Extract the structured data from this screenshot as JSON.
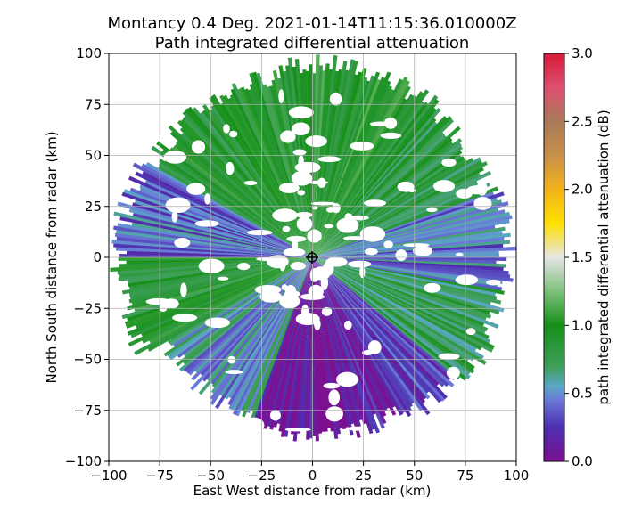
{
  "chart_data": {
    "type": "heatmap",
    "plot_kind": "radar PPI",
    "title_line1": "Montancy 0.4 Deg. 2021-01-14T11:15:36.010000Z",
    "title_line2": "Path integrated differential attenuation",
    "xlabel": "East West distance from radar (km)",
    "ylabel": "North South distance from radar (km)",
    "xlim": [
      -100,
      100
    ],
    "ylim": [
      -100,
      100
    ],
    "xticks": [
      -100,
      -75,
      -50,
      -25,
      0,
      25,
      50,
      75,
      100
    ],
    "yticks": [
      -100,
      -75,
      -50,
      -25,
      0,
      25,
      50,
      75,
      100
    ],
    "xtick_labels": [
      "−100",
      "−75",
      "−50",
      "−25",
      "0",
      "25",
      "50",
      "75",
      "100"
    ],
    "ytick_labels": [
      "−100",
      "−75",
      "−50",
      "−25",
      "0",
      "25",
      "50",
      "75",
      "100"
    ],
    "grid": true,
    "max_range_km": 100,
    "radar_position_km": [
      0,
      0
    ],
    "colorbar": {
      "label": "path integrated differential attenuation (dB)",
      "range": [
        0.0,
        3.0
      ],
      "ticks": [
        0.0,
        0.5,
        1.0,
        1.5,
        2.0,
        2.5,
        3.0
      ],
      "tick_labels": [
        "0.0",
        "0.5",
        "1.0",
        "1.5",
        "2.0",
        "2.5",
        "3.0"
      ],
      "stops": [
        {
          "v": 0.0,
          "color": "#7b1090"
        },
        {
          "v": 0.25,
          "color": "#4e2fb0"
        },
        {
          "v": 0.45,
          "color": "#6a78d8"
        },
        {
          "v": 0.55,
          "color": "#5aa6c6"
        },
        {
          "v": 0.7,
          "color": "#3f9f5a"
        },
        {
          "v": 1.0,
          "color": "#159018"
        },
        {
          "v": 1.25,
          "color": "#7dc07a"
        },
        {
          "v": 1.5,
          "color": "#e6e6e6"
        },
        {
          "v": 1.75,
          "color": "#ffe100"
        },
        {
          "v": 2.0,
          "color": "#f2b21a"
        },
        {
          "v": 2.25,
          "color": "#c9904a"
        },
        {
          "v": 2.5,
          "color": "#a87a5a"
        },
        {
          "v": 2.75,
          "color": "#e05070"
        },
        {
          "v": 3.0,
          "color": "#d81a3a"
        }
      ]
    },
    "sectors": [
      {
        "from_deg": -10,
        "to_deg": 40,
        "value": 0.95,
        "rmax": 100
      },
      {
        "from_deg": 40,
        "to_deg": 70,
        "value": 0.85,
        "rmax": 98
      },
      {
        "from_deg": 70,
        "to_deg": 100,
        "value": 0.45,
        "rmax": 100
      },
      {
        "from_deg": 100,
        "to_deg": 130,
        "value": 0.75,
        "rmax": 100
      },
      {
        "from_deg": 130,
        "to_deg": 150,
        "value": 0.3,
        "rmax": 96
      },
      {
        "from_deg": 150,
        "to_deg": 200,
        "value": 0.12,
        "rmax": 92
      },
      {
        "from_deg": 200,
        "to_deg": 240,
        "value": 0.55,
        "rmax": 88
      },
      {
        "from_deg": 240,
        "to_deg": 270,
        "value": 0.9,
        "rmax": 100
      },
      {
        "from_deg": 270,
        "to_deg": 300,
        "value": 0.4,
        "rmax": 100
      },
      {
        "from_deg": 300,
        "to_deg": 350,
        "value": 0.9,
        "rmax": 96
      }
    ]
  }
}
